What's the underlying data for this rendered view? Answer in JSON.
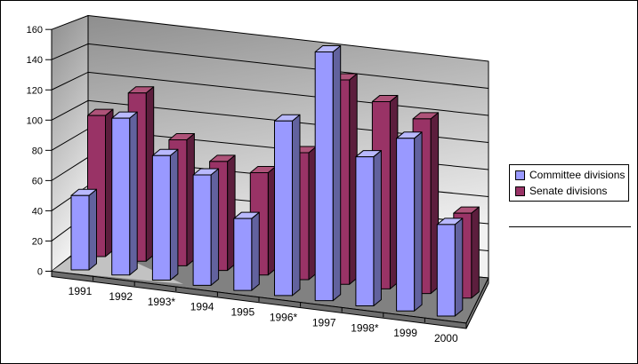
{
  "chart": {
    "type": "bar",
    "style": "3d-column",
    "title": "",
    "categories": [
      "1991",
      "1992",
      "1993*",
      "1994",
      "1995",
      "1996*",
      "1997",
      "1998*",
      "1999",
      "2000"
    ],
    "series": [
      {
        "name": "Committee divisions",
        "color": "#9999FF",
        "color_side": "#62629E",
        "color_top": "#B9B9FD",
        "values": [
          49,
          102,
          80,
          70,
          45,
          108,
          152,
          90,
          103,
          54
        ]
      },
      {
        "name": "Senate divisions",
        "color": "#993366",
        "color_side": "#5C1E3D",
        "color_top": "#AE5379",
        "values": [
          95,
          112,
          83,
          71,
          66,
          81,
          129,
          117,
          108,
          52
        ]
      }
    ],
    "y_axis": {
      "min": 0,
      "max": 160,
      "step": 20,
      "tick_labels": [
        "0",
        "20",
        "40",
        "60",
        "80",
        "100",
        "120",
        "140",
        "160"
      ]
    },
    "legend": {
      "position": "right"
    },
    "grid_on": true,
    "colors": {
      "wall_dark": "#8E8E8E",
      "wall_light": "#F2F2F2",
      "floor": "#818181",
      "floor_light": "#C2C2C2",
      "slab_front": "#6E6E6E",
      "outline": "#000000",
      "background": "#FFFFFF",
      "text": "#000000"
    }
  }
}
